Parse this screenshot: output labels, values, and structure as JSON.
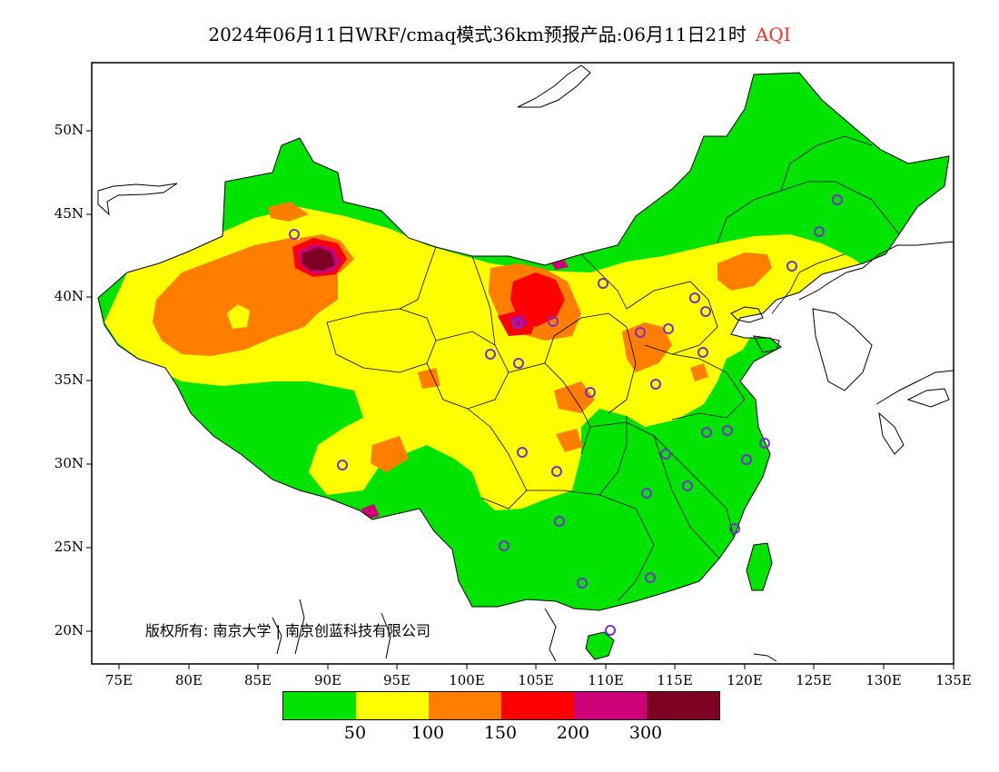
{
  "title": {
    "main": "2024年06月11日WRF/cmaq模式36km预报产品:06月11日21时",
    "product": "AQI",
    "product_color": "#ff2a2a"
  },
  "copyright": "版权所有: 南京大学 | 南京创蓝科技有限公司",
  "axes": {
    "lat_labels": [
      "50N",
      "45N",
      "40N",
      "35N",
      "30N",
      "25N",
      "20N"
    ],
    "lon_labels": [
      "75E",
      "80E",
      "85E",
      "90E",
      "95E",
      "100E",
      "105E",
      "110E",
      "115E",
      "120E",
      "125E",
      "130E",
      "135E"
    ],
    "lat_range": [
      18,
      54
    ],
    "lon_range": [
      73,
      135
    ]
  },
  "legend": {
    "colors": [
      "#00e400",
      "#ffff00",
      "#ff7e00",
      "#ff0000",
      "#cc0077",
      "#7e0023"
    ],
    "ticks": [
      "50",
      "100",
      "150",
      "200",
      "300"
    ]
  },
  "palette": {
    "land_default": "#00e400",
    "station_marker": "#7a2fd0"
  }
}
